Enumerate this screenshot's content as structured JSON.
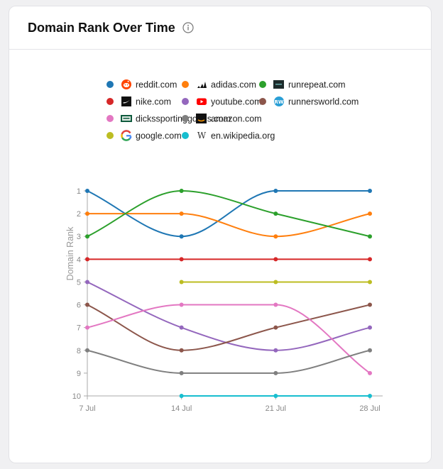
{
  "header": {
    "title": "Domain Rank Over Time",
    "info_icon": "info-circle-icon"
  },
  "chart_data": {
    "type": "line",
    "title": "",
    "xlabel": "",
    "ylabel": "Domain Rank",
    "x": [
      "7 Jul",
      "14 Jul",
      "21 Jul",
      "28 Jul"
    ],
    "ylim": [
      1,
      10
    ],
    "y_reversed": true,
    "y_ticks": [
      1,
      2,
      3,
      4,
      5,
      6,
      7,
      8,
      9,
      10
    ],
    "grid": false,
    "legend_position": "top",
    "series": [
      {
        "name": "reddit.com",
        "color": "#1f77b4",
        "icon": "reddit-icon",
        "values": [
          1,
          3,
          1,
          1
        ]
      },
      {
        "name": "adidas.com",
        "color": "#ff7f0e",
        "icon": "adidas-icon",
        "values": [
          2,
          2,
          3,
          2
        ]
      },
      {
        "name": "runrepeat.com",
        "color": "#2ca02c",
        "icon": "runrepeat-icon",
        "values": [
          3,
          1,
          2,
          3
        ]
      },
      {
        "name": "nike.com",
        "color": "#d62728",
        "icon": "nike-icon",
        "values": [
          4,
          4,
          4,
          4
        ]
      },
      {
        "name": "youtube.com",
        "color": "#9467bd",
        "icon": "youtube-icon",
        "values": [
          5,
          7,
          8,
          7
        ]
      },
      {
        "name": "runnersworld.com",
        "color": "#8c564b",
        "icon": "runnersworld-icon",
        "values": [
          6,
          8,
          7,
          6
        ]
      },
      {
        "name": "dickssportinggoods.com",
        "color": "#e377c2",
        "icon": "dickssportinggoods-icon",
        "values": [
          7,
          6,
          6,
          9
        ]
      },
      {
        "name": "amazon.com",
        "color": "#7f7f7f",
        "icon": "amazon-icon",
        "values": [
          8,
          9,
          9,
          8
        ]
      },
      {
        "name": "google.com",
        "color": "#bcbd22",
        "icon": "google-icon",
        "values": [
          null,
          5,
          5,
          5
        ]
      },
      {
        "name": "en.wikipedia.org",
        "color": "#17becf",
        "icon": "wikipedia-icon",
        "values": [
          null,
          10,
          10,
          10
        ]
      }
    ]
  }
}
